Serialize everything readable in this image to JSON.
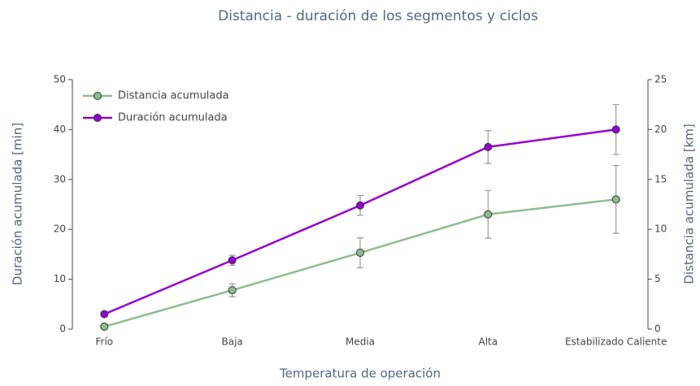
{
  "chart_data": {
    "type": "line",
    "title": "Distancia - duración de los segmentos y ciclos",
    "x_label": "Temperatura de operación",
    "y_label": "Duración acumulada [min]",
    "y2_label": "Distancia acumulada [km]",
    "categories": [
      "Frío",
      "Baja",
      "Media",
      "Alta",
      "Estabilizado Caliente"
    ],
    "ylim": [
      0,
      50
    ],
    "yticks": [
      0,
      10,
      20,
      30,
      40,
      50
    ],
    "y2lim": [
      0,
      25
    ],
    "y2ticks": [
      0,
      5,
      10,
      15,
      20,
      25
    ],
    "legend": "top-left",
    "error_color": "#999999",
    "series": [
      {
        "name": "Distancia acumulada",
        "color": "#8fbc8f",
        "axis": "y2",
        "values": [
          0.25,
          3.9,
          7.65,
          11.5,
          13
        ],
        "errors": [
          0.1,
          0.65,
          1.5,
          2.4,
          3.4
        ]
      },
      {
        "name": "Duración acumulada",
        "color": "#9400d3",
        "axis": "y",
        "values": [
          3,
          13.8,
          24.8,
          36.5,
          40
        ],
        "errors": [
          0.2,
          1,
          2,
          3.3,
          5
        ]
      }
    ]
  }
}
